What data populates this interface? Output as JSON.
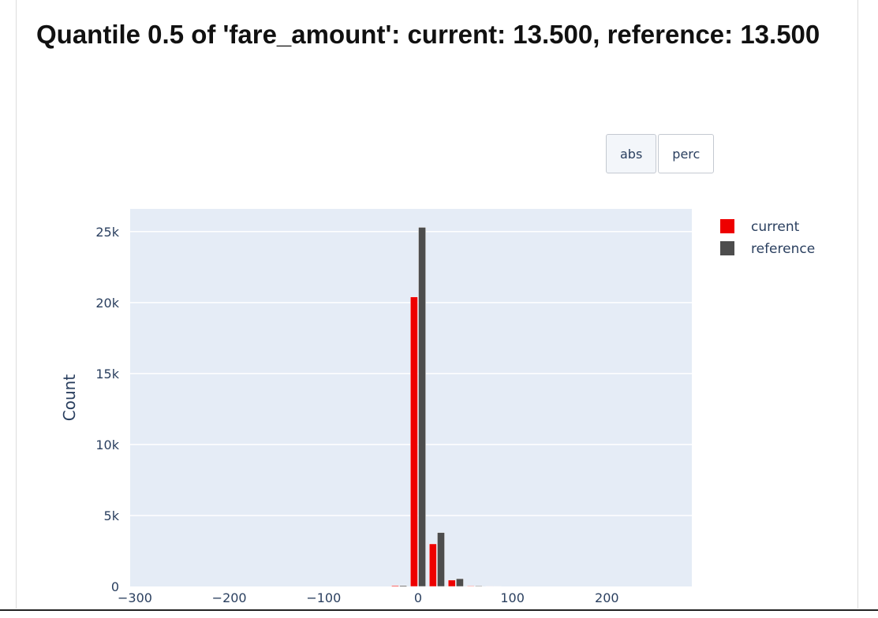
{
  "title": "Quantile 0.5 of 'fare_amount': current: 13.500, reference: 13.500",
  "toggle": {
    "buttons": [
      "abs",
      "perc"
    ],
    "active": 0
  },
  "chart_data": {
    "type": "bar",
    "ylabel": "Count",
    "xlabel": "",
    "xlim": [
      -305,
      290
    ],
    "ylim": [
      0,
      26600
    ],
    "x_ticks": [
      -300,
      -200,
      -100,
      0,
      100,
      200
    ],
    "x_tick_labels": [
      "−300",
      "−200",
      "−100",
      "0",
      "100",
      "200"
    ],
    "y_ticks": [
      0,
      5000,
      10000,
      15000,
      20000,
      25000
    ],
    "y_tick_labels": [
      "0",
      "5k",
      "10k",
      "15k",
      "20k",
      "25k"
    ],
    "bin_centers": [
      -20,
      0,
      20,
      40,
      60,
      80
    ],
    "series": [
      {
        "name": "current",
        "color": "#ee0000",
        "values": [
          60,
          20400,
          3000,
          450,
          40,
          10
        ]
      },
      {
        "name": "reference",
        "color": "#4d4d4d",
        "values": [
          70,
          25300,
          3800,
          550,
          50,
          10
        ]
      }
    ],
    "plot_background": "#e5ecf6",
    "grid": true,
    "legend_position": "top-right"
  }
}
